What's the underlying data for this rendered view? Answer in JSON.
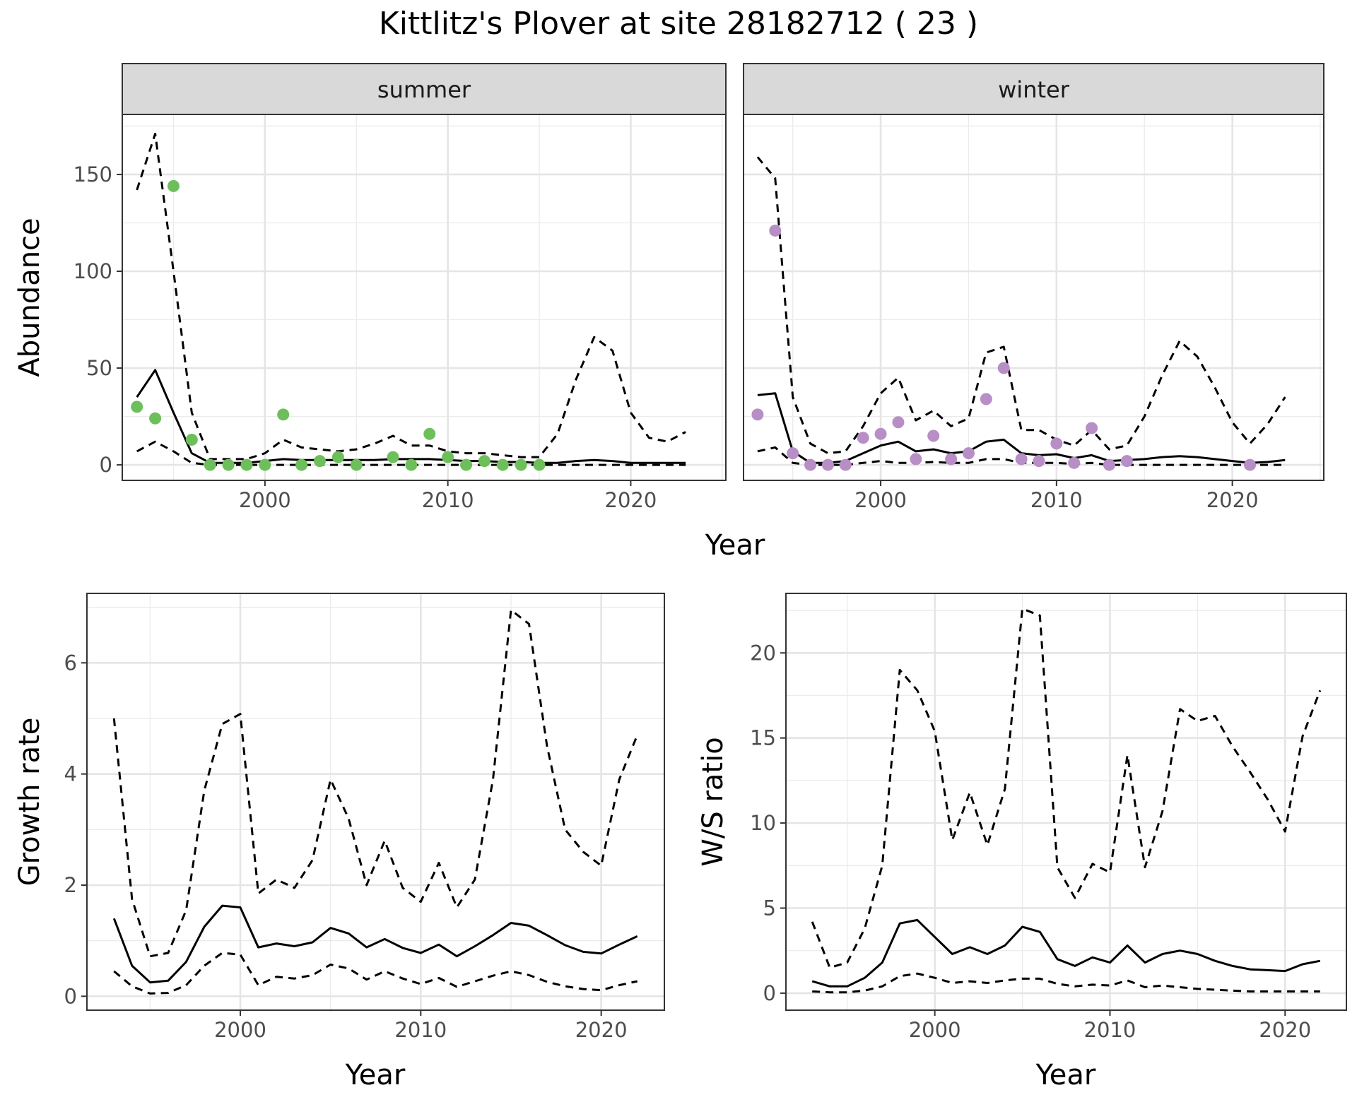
{
  "figure": {
    "title": "Kittlitz's Plover at site 28182712 ( 23 )"
  },
  "chart_data": [
    {
      "id": "abundance",
      "type": "scatter",
      "xlabel": "Year",
      "ylabel": "Abundance",
      "xlim": [
        1992.2,
        2025.2
      ],
      "ylim": [
        -8,
        181
      ],
      "xticks": [
        2000,
        2010,
        2020
      ],
      "yticks": [
        0,
        50,
        100,
        150
      ],
      "grid": true,
      "panels": [
        {
          "strip": "summer",
          "point_color": "#6dbf5b",
          "points": {
            "x": [
              1993,
              1994,
              1995,
              1996,
              1997,
              1998,
              1999,
              2000,
              2001,
              2002,
              2003,
              2004,
              2005,
              2007,
              2008,
              2009,
              2010,
              2011,
              2012,
              2013,
              2014,
              2015
            ],
            "y": [
              30,
              24,
              144,
              13,
              0,
              0,
              0,
              0,
              26,
              0,
              2,
              4,
              0,
              4,
              0,
              16,
              4,
              0,
              2,
              0,
              0,
              0
            ]
          },
          "series": [
            {
              "name": "",
              "style": "solid",
              "x": [
                1993,
                1994,
                1995,
                1996,
                1997,
                1998,
                1999,
                2000,
                2001,
                2002,
                2003,
                2004,
                2005,
                2006,
                2007,
                2008,
                2009,
                2010,
                2011,
                2012,
                2013,
                2014,
                2015,
                2016,
                2017,
                2018,
                2019,
                2020,
                2021,
                2022,
                2023
              ],
              "y": [
                35,
                49,
                27,
                6,
                1,
                1,
                1,
                2,
                3,
                2.5,
                2.5,
                2.5,
                2.5,
                2.5,
                3,
                3,
                3,
                2.5,
                2,
                2,
                1.5,
                1.5,
                1,
                1,
                2,
                2.5,
                2,
                1,
                1,
                1,
                1
              ]
            },
            {
              "name": "",
              "style": "dashed",
              "x": [
                1993,
                1994,
                1995,
                1996,
                1997,
                1998,
                1999,
                2000,
                2001,
                2002,
                2003,
                2004,
                2005,
                2006,
                2007,
                2008,
                2009,
                2010,
                2011,
                2012,
                2013,
                2014,
                2015,
                2016,
                2017,
                2018,
                2019,
                2020,
                2021,
                2022,
                2023
              ],
              "y": [
                142,
                171,
                100,
                27,
                3,
                3,
                3,
                6,
                13,
                9,
                8,
                7,
                8,
                11,
                15,
                10,
                10,
                7,
                6,
                6,
                5,
                4,
                4,
                16,
                44,
                66,
                59,
                27,
                14,
                12,
                17
              ]
            },
            {
              "name": "",
              "style": "dashed",
              "x": [
                1993,
                1994,
                1995,
                1996,
                1997,
                1998,
                1999,
                2000,
                2001,
                2002,
                2003,
                2004,
                2005,
                2006,
                2007,
                2008,
                2009,
                2010,
                2011,
                2012,
                2013,
                2014,
                2015,
                2016,
                2017,
                2018,
                2019,
                2020,
                2021,
                2022,
                2023
              ],
              "y": [
                7,
                12,
                7,
                1,
                0,
                0,
                0,
                0,
                0,
                0,
                0,
                0,
                0,
                0,
                0,
                0,
                0,
                0,
                0,
                0,
                0,
                0,
                0,
                0,
                0,
                0,
                0,
                0,
                0,
                0,
                0
              ]
            }
          ]
        },
        {
          "strip": "winter",
          "point_color": "#b88ec6",
          "points": {
            "x": [
              1993,
              1994,
              1995,
              1996,
              1997,
              1998,
              1999,
              2000,
              2001,
              2002,
              2003,
              2004,
              2005,
              2006,
              2007,
              2008,
              2009,
              2010,
              2011,
              2012,
              2013,
              2014,
              2021
            ],
            "y": [
              26,
              121,
              6,
              0,
              0,
              0,
              14,
              16,
              22,
              3,
              15,
              3,
              6,
              34,
              50,
              3,
              2,
              11,
              1,
              19,
              0,
              2,
              0
            ]
          },
          "series": [
            {
              "name": "",
              "style": "solid",
              "x": [
                1993,
                1994,
                1995,
                1996,
                1997,
                1998,
                1999,
                2000,
                2001,
                2002,
                2003,
                2004,
                2005,
                2006,
                2007,
                2008,
                2009,
                2010,
                2011,
                2012,
                2013,
                2014,
                2015,
                2016,
                2017,
                2018,
                2019,
                2020,
                2021,
                2022,
                2023
              ],
              "y": [
                36,
                37,
                7,
                1,
                1,
                2,
                6,
                10,
                12,
                7,
                8,
                6,
                7,
                12,
                13,
                6,
                5,
                5.5,
                3.5,
                5,
                2,
                2.5,
                3,
                4,
                4.5,
                4,
                3,
                2,
                1,
                1.5,
                2.5
              ]
            },
            {
              "name": "",
              "style": "dashed",
              "x": [
                1993,
                1994,
                1995,
                1996,
                1997,
                1998,
                1999,
                2000,
                2001,
                2002,
                2003,
                2004,
                2005,
                2006,
                2007,
                2008,
                2009,
                2010,
                2011,
                2012,
                2013,
                2014,
                2015,
                2016,
                2017,
                2018,
                2019,
                2020,
                2021,
                2022,
                2023
              ],
              "y": [
                159,
                148,
                35,
                11,
                6,
                7,
                20,
                37,
                45,
                23,
                28,
                20,
                24,
                58,
                61,
                18,
                18,
                13,
                10,
                18,
                8,
                10,
                25,
                46,
                64,
                56,
                40,
                22,
                11,
                21,
                35
              ]
            },
            {
              "name": "",
              "style": "dashed",
              "x": [
                1993,
                1994,
                1995,
                1996,
                1997,
                1998,
                1999,
                2000,
                2001,
                2002,
                2003,
                2004,
                2005,
                2006,
                2007,
                2008,
                2009,
                2010,
                2011,
                2012,
                2013,
                2014,
                2015,
                2016,
                2017,
                2018,
                2019,
                2020,
                2021,
                2022,
                2023
              ],
              "y": [
                7,
                9,
                1,
                0,
                0,
                0,
                1,
                2,
                1,
                1,
                1.5,
                1,
                1,
                3,
                3,
                1,
                1,
                1,
                0.5,
                1,
                0,
                0,
                0,
                0,
                0,
                0,
                0,
                0,
                0,
                0,
                0
              ]
            }
          ]
        }
      ]
    },
    {
      "id": "growth",
      "type": "line",
      "xlabel": "Year",
      "ylabel": "Growth rate",
      "xlim": [
        1991.5,
        2023.5
      ],
      "ylim": [
        -0.25,
        7.25
      ],
      "xticks": [
        2000,
        2010,
        2020
      ],
      "yticks": [
        0,
        2,
        4,
        6
      ],
      "grid": true,
      "series": [
        {
          "name": "",
          "style": "solid",
          "x": [
            1993,
            1994,
            1995,
            1996,
            1997,
            1998,
            1999,
            2000,
            2001,
            2002,
            2003,
            2004,
            2005,
            2006,
            2007,
            2008,
            2009,
            2010,
            2011,
            2012,
            2013,
            2014,
            2015,
            2016,
            2017,
            2018,
            2019,
            2020,
            2021,
            2022
          ],
          "y": [
            1.4,
            0.55,
            0.25,
            0.28,
            0.62,
            1.25,
            1.63,
            1.6,
            0.88,
            0.95,
            0.9,
            0.97,
            1.23,
            1.13,
            0.88,
            1.03,
            0.87,
            0.78,
            0.93,
            0.72,
            0.9,
            1.1,
            1.32,
            1.27,
            1.1,
            0.92,
            0.8,
            0.77,
            0.93,
            1.08
          ]
        },
        {
          "name": "",
          "style": "dashed",
          "x": [
            1993,
            1994,
            1995,
            1996,
            1997,
            1998,
            1999,
            2000,
            2001,
            2002,
            2003,
            2004,
            2005,
            2006,
            2007,
            2008,
            2009,
            2010,
            2011,
            2012,
            2013,
            2014,
            2015,
            2016,
            2017,
            2018,
            2019,
            2020,
            2021,
            2022
          ],
          "y": [
            5,
            1.75,
            0.72,
            0.78,
            1.55,
            3.7,
            4.9,
            5.08,
            1.85,
            2.1,
            1.95,
            2.45,
            3.9,
            3.2,
            2.0,
            2.8,
            1.95,
            1.7,
            2.4,
            1.6,
            2.1,
            3.9,
            6.95,
            6.7,
            4.5,
            3.0,
            2.6,
            2.35,
            3.9,
            4.7
          ]
        },
        {
          "name": "",
          "style": "dashed",
          "x": [
            1993,
            1994,
            1995,
            1996,
            1997,
            1998,
            1999,
            2000,
            2001,
            2002,
            2003,
            2004,
            2005,
            2006,
            2007,
            2008,
            2009,
            2010,
            2011,
            2012,
            2013,
            2014,
            2015,
            2016,
            2017,
            2018,
            2019,
            2020,
            2021,
            2022
          ],
          "y": [
            0.45,
            0.18,
            0.05,
            0.06,
            0.2,
            0.55,
            0.78,
            0.75,
            0.2,
            0.35,
            0.32,
            0.38,
            0.57,
            0.5,
            0.3,
            0.45,
            0.32,
            0.22,
            0.33,
            0.17,
            0.27,
            0.37,
            0.45,
            0.38,
            0.26,
            0.18,
            0.13,
            0.11,
            0.2,
            0.27
          ]
        }
      ]
    },
    {
      "id": "ws_ratio",
      "type": "line",
      "xlabel": "Year",
      "ylabel": "W/S ratio",
      "xlim": [
        1991.5,
        2023.5
      ],
      "ylim": [
        -1,
        23.5
      ],
      "xticks": [
        2000,
        2010,
        2020
      ],
      "yticks": [
        0,
        5,
        10,
        15,
        20
      ],
      "grid": true,
      "series": [
        {
          "name": "",
          "style": "solid",
          "x": [
            1993,
            1994,
            1995,
            1996,
            1997,
            1998,
            1999,
            2000,
            2001,
            2002,
            2003,
            2004,
            2005,
            2006,
            2007,
            2008,
            2009,
            2010,
            2011,
            2012,
            2013,
            2014,
            2015,
            2016,
            2017,
            2018,
            2019,
            2020,
            2021,
            2022
          ],
          "y": [
            0.7,
            0.4,
            0.4,
            0.9,
            1.8,
            4.1,
            4.3,
            3.3,
            2.3,
            2.7,
            2.3,
            2.8,
            3.9,
            3.6,
            2.0,
            1.6,
            2.1,
            1.8,
            2.8,
            1.8,
            2.3,
            2.5,
            2.3,
            1.9,
            1.6,
            1.4,
            1.35,
            1.3,
            1.7,
            1.9
          ]
        },
        {
          "name": "",
          "style": "dashed",
          "x": [
            1993,
            1994,
            1995,
            1996,
            1997,
            1998,
            1999,
            2000,
            2001,
            2002,
            2003,
            2004,
            2005,
            2006,
            2007,
            2008,
            2009,
            2010,
            2011,
            2012,
            2013,
            2014,
            2015,
            2016,
            2017,
            2018,
            2019,
            2020,
            2021,
            2022
          ],
          "y": [
            4.2,
            1.5,
            1.8,
            3.8,
            7.5,
            19.0,
            17.8,
            15.4,
            9.0,
            11.8,
            8.7,
            12.0,
            22.6,
            22.2,
            7.4,
            5.6,
            7.6,
            7.1,
            14.0,
            7.4,
            10.7,
            16.7,
            16.0,
            16.3,
            14.5,
            13.0,
            11.4,
            9.5,
            15.1,
            17.8
          ]
        },
        {
          "name": "",
          "style": "dashed",
          "x": [
            1993,
            1994,
            1995,
            1996,
            1997,
            1998,
            1999,
            2000,
            2001,
            2002,
            2003,
            2004,
            2005,
            2006,
            2007,
            2008,
            2009,
            2010,
            2011,
            2012,
            2013,
            2014,
            2015,
            2016,
            2017,
            2018,
            2019,
            2020,
            2021,
            2022
          ],
          "y": [
            0.1,
            0.05,
            0.05,
            0.15,
            0.4,
            1.0,
            1.15,
            0.9,
            0.6,
            0.7,
            0.6,
            0.75,
            0.85,
            0.85,
            0.55,
            0.4,
            0.5,
            0.45,
            0.75,
            0.35,
            0.45,
            0.35,
            0.25,
            0.2,
            0.15,
            0.1,
            0.1,
            0.1,
            0.1,
            0.1
          ]
        }
      ]
    }
  ]
}
